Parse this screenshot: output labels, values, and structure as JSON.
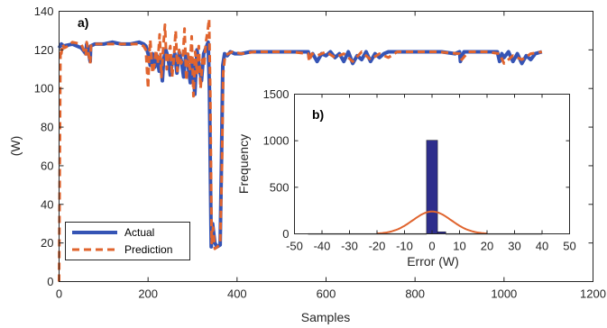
{
  "chart_data": [
    {
      "type": "line",
      "panel_label": "a)",
      "xlabel": "Samples",
      "ylabel": "(W)",
      "xlim": [
        0,
        1200
      ],
      "ylim": [
        0,
        140
      ],
      "xticks": [
        0,
        200,
        400,
        600,
        800,
        1000,
        1200
      ],
      "yticks": [
        0,
        20,
        40,
        60,
        80,
        100,
        120,
        140
      ],
      "grid": false,
      "legend_placement": "bottom-left",
      "series": [
        {
          "name": "Actual",
          "color": "#3554b5",
          "style": "solid",
          "x": [
            0,
            5,
            10,
            30,
            50,
            60,
            62,
            70,
            71,
            80,
            100,
            120,
            140,
            150,
            160,
            180,
            190,
            195,
            200,
            205,
            210,
            215,
            220,
            225,
            228,
            232,
            235,
            240,
            245,
            250,
            255,
            260,
            265,
            270,
            275,
            280,
            285,
            290,
            295,
            300,
            305,
            310,
            315,
            320,
            325,
            330,
            335,
            338,
            342,
            345,
            350,
            355,
            362,
            365,
            368,
            372,
            378,
            385,
            395,
            410,
            430,
            460,
            500,
            540,
            560,
            562,
            570,
            580,
            590,
            600,
            610,
            620,
            630,
            640,
            650,
            660,
            670,
            680,
            690,
            700,
            710,
            720,
            730,
            740,
            760,
            780,
            800,
            830,
            860,
            890,
            900,
            902,
            906,
            910,
            930,
            960,
            985,
            990,
            995,
            1000,
            1010,
            1020,
            1030,
            1040,
            1050,
            1060,
            1070,
            1085
          ],
          "y": [
            121,
            123,
            122,
            123,
            121,
            118,
            123,
            114,
            122,
            123,
            123,
            124,
            123,
            123,
            123,
            124,
            123,
            122,
            118,
            112,
            118,
            111,
            117,
            109,
            114,
            104,
            115,
            120,
            116,
            107,
            114,
            118,
            108,
            119,
            114,
            106,
            118,
            112,
            103,
            115,
            97,
            120,
            111,
            104,
            118,
            121,
            124,
            100,
            18,
            30,
            20,
            18,
            19,
            64,
            112,
            118,
            117,
            119,
            118,
            118,
            119,
            119,
            119,
            119,
            119,
            116,
            118,
            114,
            118,
            117,
            119,
            116,
            118,
            114,
            119,
            113,
            117,
            115,
            119,
            114,
            118,
            116,
            118,
            119,
            119,
            119,
            119,
            119,
            119,
            118,
            119,
            114,
            117,
            119,
            119,
            119,
            119,
            114,
            118,
            116,
            119,
            114,
            118,
            113,
            117,
            115,
            118,
            119
          ]
        },
        {
          "name": "Prediction",
          "color": "#e0642e",
          "style": "dashed",
          "x": [
            0,
            3,
            5,
            8,
            12,
            20,
            30,
            50,
            60,
            62,
            70,
            72,
            80,
            100,
            120,
            140,
            160,
            180,
            190,
            195,
            200,
            202,
            205,
            210,
            214,
            218,
            222,
            226,
            230,
            234,
            238,
            242,
            246,
            250,
            254,
            258,
            262,
            266,
            270,
            274,
            278,
            282,
            286,
            290,
            294,
            298,
            302,
            306,
            310,
            314,
            318,
            322,
            326,
            330,
            334,
            337,
            340,
            343,
            346,
            350,
            356,
            362,
            366,
            369,
            373,
            380,
            390,
            410,
            440,
            480,
            520,
            560,
            562,
            568,
            580,
            600,
            620,
            640,
            660,
            680,
            700,
            720,
            740,
            760,
            800,
            850,
            900,
            905,
            920,
            960,
            990,
            1000,
            1020,
            1040,
            1060,
            1085
          ],
          "y": [
            0,
            120,
            118,
            123,
            121,
            122,
            124,
            123,
            117,
            124,
            113,
            123,
            123,
            123,
            123,
            123,
            123,
            123,
            122,
            120,
            100,
            115,
            125,
            108,
            112,
            120,
            113,
            128,
            106,
            121,
            133,
            110,
            118,
            122,
            106,
            116,
            130,
            109,
            120,
            113,
            115,
            131,
            104,
            118,
            110,
            127,
            96,
            119,
            108,
            122,
            100,
            115,
            112,
            124,
            130,
            136,
            96,
            20,
            28,
            17,
            18,
            20,
            60,
            108,
            117,
            118,
            119,
            118,
            119,
            119,
            119,
            118,
            114,
            118,
            117,
            119,
            116,
            118,
            114,
            119,
            115,
            118,
            116,
            119,
            119,
            119,
            118,
            115,
            119,
            119,
            118,
            113,
            117,
            115,
            118,
            119
          ]
        }
      ]
    },
    {
      "type": "bar",
      "panel_label": "b)",
      "xlabel": "Error (W)",
      "ylabel": "Frequency",
      "xlim": [
        -50,
        50
      ],
      "ylim": [
        0,
        1500
      ],
      "xticks": [
        -50,
        -40,
        -30,
        -20,
        -10,
        0,
        10,
        20,
        30,
        40,
        50
      ],
      "yticks": [
        0,
        500,
        1000,
        1500
      ],
      "grid": false,
      "bar_color": "#2e2e8c",
      "bins": [
        {
          "from": -45,
          "to": -2,
          "value": 3
        },
        {
          "from": -2,
          "to": 2,
          "value": 1005
        },
        {
          "from": 2,
          "to": 5,
          "value": 22
        },
        {
          "from": 5,
          "to": 40,
          "value": 3
        }
      ],
      "fit_curve": {
        "type": "normal",
        "color": "#e0642e",
        "mean": 0,
        "std": 7,
        "peak": 240,
        "x_range": [
          -20,
          20
        ]
      }
    }
  ]
}
